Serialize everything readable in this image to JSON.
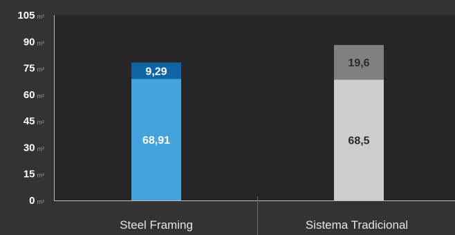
{
  "chart_data": {
    "type": "bar",
    "stacked": true,
    "title": "",
    "xlabel": "",
    "ylabel": "",
    "y_unit": "m²",
    "ylim": [
      0,
      105
    ],
    "yticks": [
      0,
      15,
      30,
      45,
      60,
      75,
      90,
      105
    ],
    "ytick_labels": [
      "0",
      "15",
      "30",
      "45",
      "60",
      "75",
      "90",
      "105"
    ],
    "categories": [
      "Steel Framing",
      "Sistema Tradicional"
    ],
    "series": [
      {
        "values": [
          68.91,
          68.5
        ],
        "value_labels": [
          "68,91",
          "68,5"
        ],
        "colors": [
          "#44a3dc",
          "#cdcdcd"
        ],
        "label_colors": [
          "#ffffff",
          "#2a2a2a"
        ]
      },
      {
        "values": [
          9.29,
          19.6
        ],
        "value_labels": [
          "9,29",
          "19,6"
        ],
        "colors": [
          "#0f64a3",
          "#808080"
        ],
        "label_colors": [
          "#ffffff",
          "#2a2a2a"
        ]
      }
    ],
    "grid": false,
    "legend": "none",
    "colors": {
      "background": "#333333",
      "plot_area": "#262626",
      "axis": "#bdbdbd"
    }
  }
}
